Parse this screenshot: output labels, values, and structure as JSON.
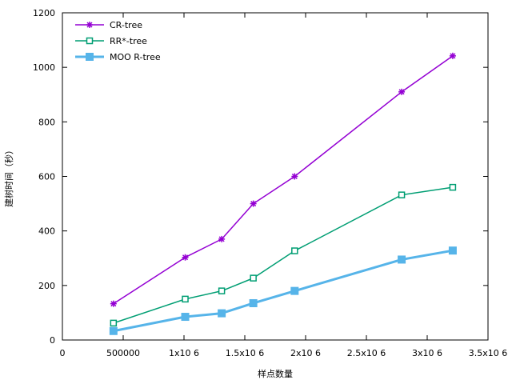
{
  "chart_data": {
    "type": "line",
    "xlabel": "样点数量",
    "ylabel": "建树时间（秒）",
    "xlim": [
      0,
      3500000
    ],
    "ylim": [
      0,
      1200
    ],
    "x_ticks": [
      {
        "value": 0,
        "label": "0"
      },
      {
        "value": 500000,
        "label": "500000"
      },
      {
        "value": 1000000,
        "label": "1x10 6"
      },
      {
        "value": 1500000,
        "label": "1.5x10 6"
      },
      {
        "value": 2000000,
        "label": "2x10 6"
      },
      {
        "value": 2500000,
        "label": "2.5x10 6"
      },
      {
        "value": 3000000,
        "label": "3x10 6"
      },
      {
        "value": 3500000,
        "label": "3.5x10 6"
      }
    ],
    "y_ticks": [
      {
        "value": 0,
        "label": "0"
      },
      {
        "value": 200,
        "label": "200"
      },
      {
        "value": 400,
        "label": "400"
      },
      {
        "value": 600,
        "label": "600"
      },
      {
        "value": 800,
        "label": "800"
      },
      {
        "value": 1000,
        "label": "1000"
      },
      {
        "value": 1200,
        "label": "1200"
      }
    ],
    "grid": false,
    "legend_position": "top-left",
    "x": [
      420000,
      1010000,
      1310000,
      1570000,
      1910000,
      2790000,
      3210000
    ],
    "series": [
      {
        "name": "CR-tree",
        "color": "#9400d3",
        "marker": "star",
        "values": [
          133,
          303,
          370,
          500,
          600,
          910,
          1042
        ]
      },
      {
        "name": "RR*-tree",
        "color": "#009e73",
        "marker": "open-square",
        "values": [
          62,
          150,
          180,
          227,
          327,
          532,
          560
        ]
      },
      {
        "name": "MOO R-tree",
        "color": "#56b4e9",
        "marker": "filled-square",
        "values": [
          33,
          85,
          98,
          135,
          180,
          295,
          328
        ]
      }
    ]
  }
}
